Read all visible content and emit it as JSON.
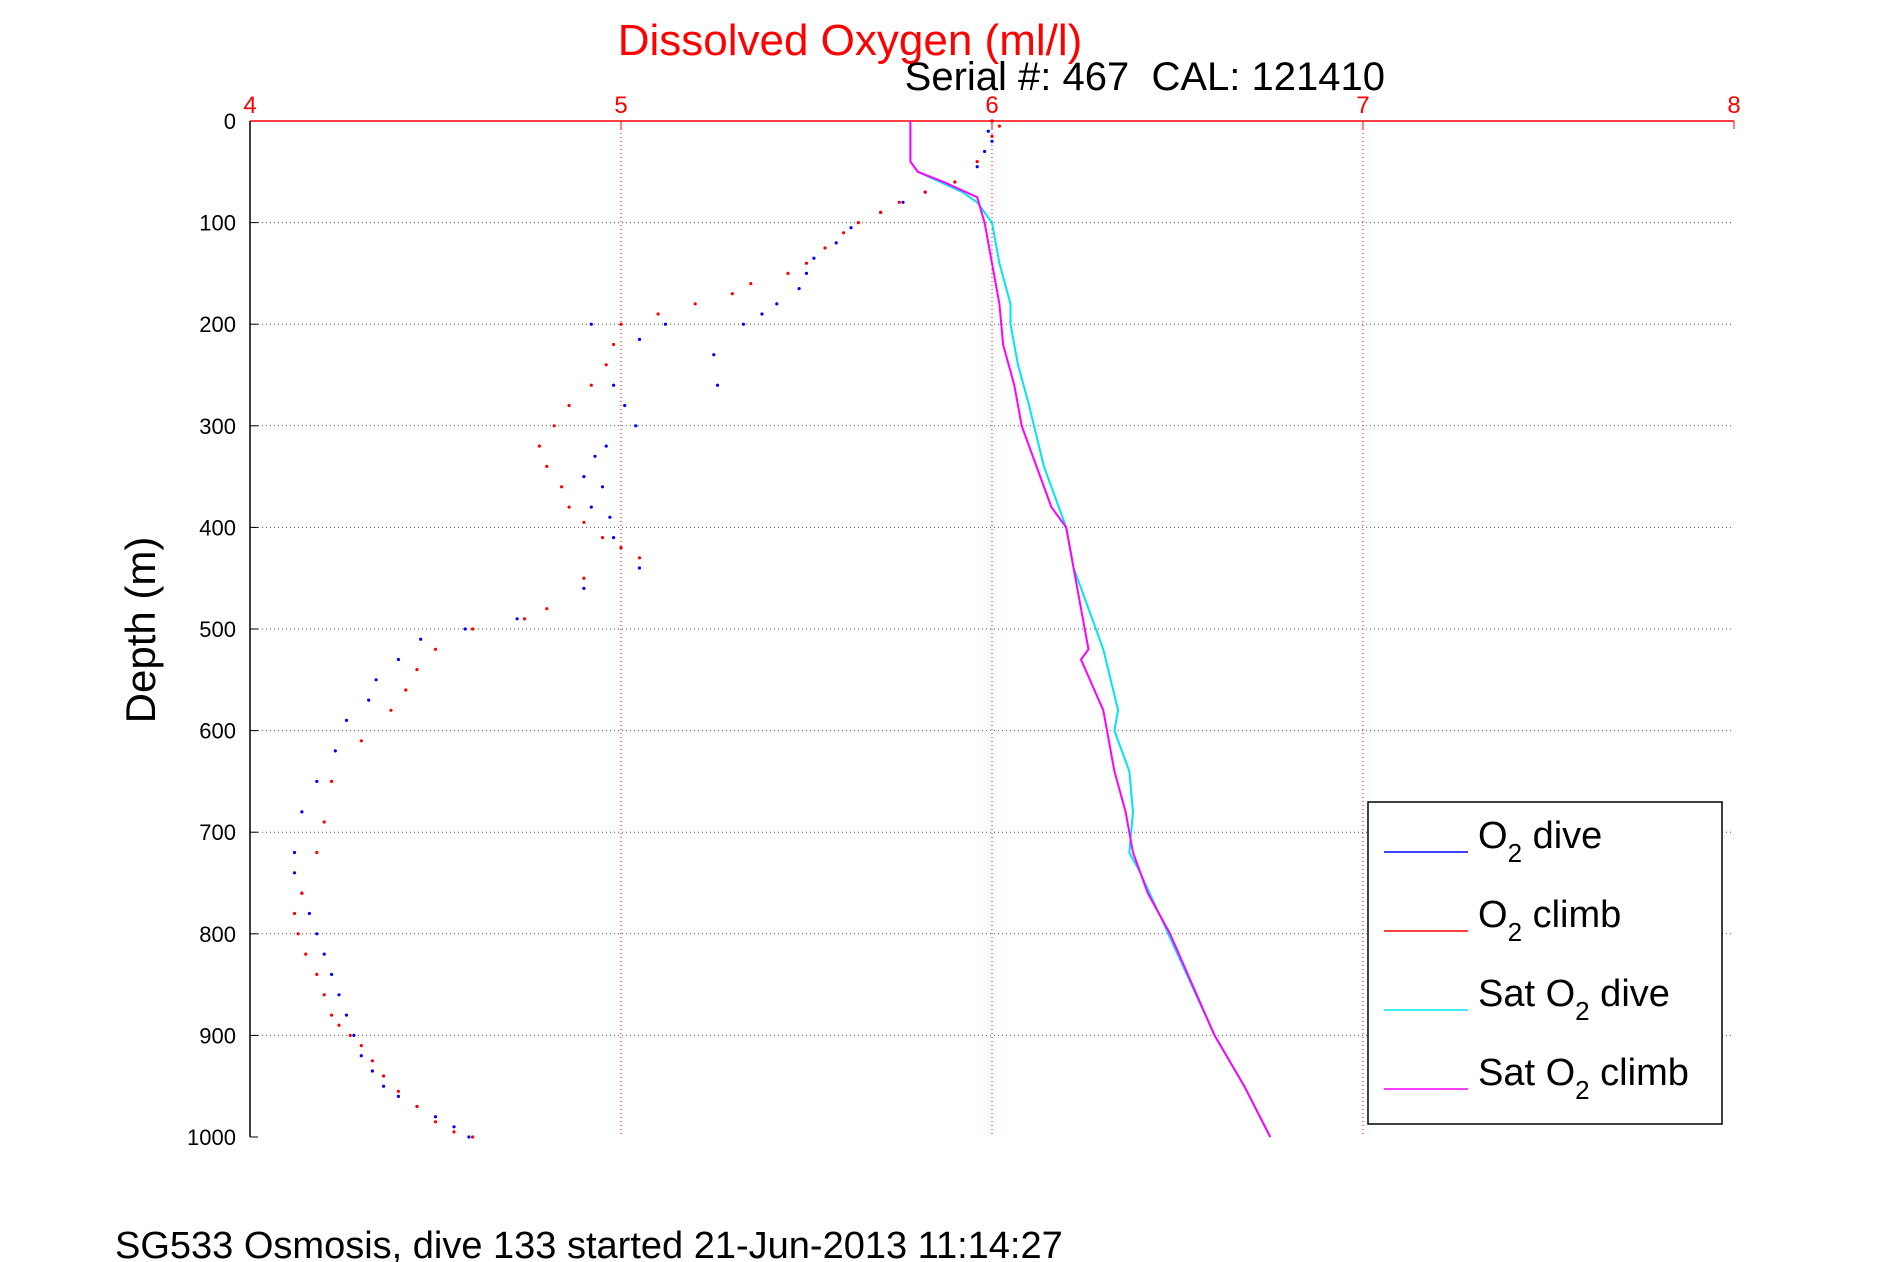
{
  "chart_data": {
    "type": "line",
    "title": "Dissolved Oxygen (ml/l)",
    "subtitle": "Serial #: 467  CAL: 121410",
    "footer": "SG533 Osmosis, dive 133 started 21-Jun-2013 11:14:27",
    "xlabel": "",
    "ylabel": "Depth (m)",
    "xlim": [
      4,
      8
    ],
    "ylim": [
      0,
      1000
    ],
    "y_reversed": true,
    "x_axis_position": "top",
    "grid": true,
    "legend_position": "bottom-right",
    "xticks": [
      "4",
      "5",
      "6",
      "7",
      "8"
    ],
    "yticks": [
      "0",
      "100",
      "200",
      "300",
      "400",
      "500",
      "600",
      "700",
      "800",
      "900",
      "1000"
    ],
    "series": [
      {
        "name": "O2 dive",
        "legend_main": "O",
        "legend_sub": "2",
        "legend_rest": " dive",
        "color": "#0000ff",
        "style": "dots",
        "x": [
          6.0,
          5.99,
          6.0,
          5.98,
          5.96,
          5.9,
          5.82,
          5.76,
          5.7,
          5.62,
          5.58,
          5.52,
          5.5,
          5.48,
          5.42,
          5.38,
          5.33,
          5.12,
          4.92,
          5.05,
          5.25,
          5.26,
          4.98,
          5.01,
          5.04,
          4.96,
          4.93,
          4.9,
          4.95,
          4.92,
          4.97,
          4.98,
          5.0,
          5.05,
          4.9,
          4.72,
          4.58,
          4.46,
          4.4,
          4.34,
          4.32,
          4.26,
          4.23,
          4.18,
          4.14,
          4.12,
          4.12,
          4.14,
          4.16,
          4.18,
          4.2,
          4.22,
          4.24,
          4.26,
          4.28,
          4.3,
          4.33,
          4.36,
          4.4,
          4.45,
          4.5,
          4.55,
          4.59
        ],
        "y": [
          0,
          10,
          20,
          30,
          45,
          60,
          70,
          80,
          90,
          105,
          120,
          135,
          150,
          165,
          180,
          190,
          200,
          200,
          200,
          215,
          230,
          260,
          260,
          280,
          300,
          320,
          330,
          350,
          360,
          380,
          390,
          410,
          420,
          440,
          460,
          490,
          500,
          510,
          530,
          550,
          570,
          590,
          620,
          650,
          680,
          720,
          740,
          760,
          780,
          800,
          820,
          840,
          860,
          880,
          900,
          920,
          935,
          950,
          960,
          970,
          980,
          990,
          1000
        ]
      },
      {
        "name": "O2 climb",
        "legend_main": "O",
        "legend_sub": "2",
        "legend_rest": " climb",
        "color": "#ff0000",
        "style": "dots",
        "x": [
          6.0,
          6.02,
          6.0,
          5.96,
          5.9,
          5.82,
          5.75,
          5.7,
          5.64,
          5.6,
          5.55,
          5.5,
          5.45,
          5.35,
          5.3,
          5.2,
          5.1,
          5.0,
          4.98,
          4.96,
          4.92,
          4.86,
          4.82,
          4.78,
          4.8,
          4.84,
          4.86,
          4.9,
          4.95,
          5.0,
          5.05,
          4.9,
          4.8,
          4.74,
          4.6,
          4.5,
          4.45,
          4.42,
          4.38,
          4.3,
          4.22,
          4.2,
          4.18,
          4.14,
          4.12,
          4.13,
          4.15,
          4.18,
          4.2,
          4.22,
          4.24,
          4.27,
          4.3,
          4.33,
          4.36,
          4.4,
          4.45,
          4.5,
          4.55,
          4.6
        ],
        "y": [
          0,
          5,
          15,
          40,
          60,
          70,
          80,
          90,
          100,
          110,
          125,
          140,
          150,
          160,
          170,
          180,
          190,
          200,
          220,
          240,
          260,
          280,
          300,
          320,
          340,
          360,
          380,
          395,
          410,
          420,
          430,
          450,
          480,
          490,
          500,
          520,
          540,
          560,
          580,
          610,
          650,
          690,
          720,
          760,
          780,
          800,
          820,
          840,
          860,
          880,
          890,
          900,
          910,
          925,
          940,
          955,
          970,
          985,
          995,
          1000
        ]
      },
      {
        "name": "Sat O2 dive",
        "legend_main": "Sat O",
        "legend_sub": "2",
        "legend_rest": " dive",
        "color": "#00e5ee",
        "style": "line",
        "x": [
          5.78,
          5.78,
          5.8,
          5.92,
          5.96,
          6.0,
          6.02,
          6.05,
          6.05,
          6.07,
          6.1,
          6.12,
          6.14,
          6.18,
          6.2,
          6.22,
          6.26,
          6.3,
          6.34,
          6.33,
          6.37,
          6.38,
          6.37,
          6.4,
          6.45,
          6.5,
          6.55,
          6.6,
          6.68,
          6.75
        ],
        "y": [
          0,
          40,
          50,
          70,
          80,
          100,
          140,
          180,
          200,
          240,
          280,
          310,
          340,
          380,
          400,
          440,
          480,
          520,
          580,
          600,
          640,
          680,
          720,
          740,
          780,
          820,
          860,
          900,
          950,
          1000
        ]
      },
      {
        "name": "Sat O2 climb",
        "legend_main": "Sat O",
        "legend_sub": "2",
        "legend_rest": " climb",
        "color": "#ff00ff",
        "style": "line",
        "x": [
          5.78,
          5.78,
          5.8,
          5.87,
          5.96,
          5.98,
          6.0,
          6.02,
          6.03,
          6.06,
          6.08,
          6.12,
          6.16,
          6.2,
          6.22,
          6.24,
          6.26,
          6.24,
          6.3,
          6.33,
          6.36,
          6.38,
          6.4,
          6.42,
          6.48,
          6.54,
          6.6,
          6.68,
          6.75
        ],
        "y": [
          0,
          40,
          50,
          60,
          75,
          100,
          140,
          180,
          220,
          260,
          300,
          340,
          380,
          400,
          440,
          480,
          520,
          530,
          580,
          640,
          680,
          720,
          740,
          760,
          800,
          850,
          900,
          950,
          1000
        ]
      }
    ]
  }
}
